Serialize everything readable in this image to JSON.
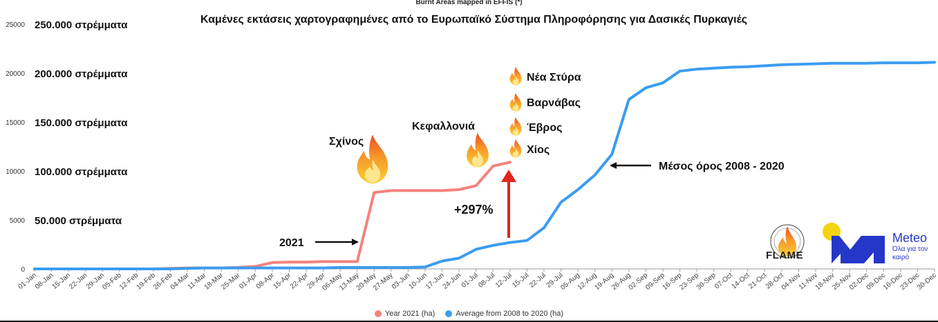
{
  "header": {
    "source_title": "Burnt Areas mapped in EFFIS (*)",
    "main_title": "Καμένες εκτάσεις χαρτογραφημένες από το Ευρωπαϊκό Σύστημα Πληροφόρησης για Δασικές Πυρκαγιές"
  },
  "colors": {
    "series_2021": "#f4827c",
    "series_avg": "#3b9cf0",
    "arrow_red": "#e0251b",
    "axis": "#9a9a9a",
    "meteo_blue": "#2437c9",
    "meteo_yellow": "#f5d40f"
  },
  "strema_labels": [
    {
      "value": 20000,
      "text": "50.000 στρέμματα"
    },
    {
      "value": 0,
      "text": ""
    },
    {
      "value": 40000,
      "text": "100.000 στρέμματα"
    },
    {
      "value": 60000,
      "text": "150.000 στρέμματα"
    },
    {
      "value": 80000,
      "text": "200.000 στρέμματα"
    },
    {
      "value": 100000,
      "text": "250.000 στρέμματα"
    }
  ],
  "annotations": {
    "schinos": "Σχίνος",
    "kefallonia": "Κεφαλλονιά",
    "nea_styra": "Νέα Στύρα",
    "varnavas": "Βαρνάβας",
    "evros": "Έβρος",
    "chios": "Χίος",
    "year_2021": "2021",
    "average_label": "Μέσος όρος 2008 - 2020",
    "increase": "+297%"
  },
  "logos": {
    "flame_text": "FLAME",
    "flame_ring_text": "EXPERTS ON FIRE WEATHER & FIRE BEHAVIOUR",
    "meteo_name": "Meteo",
    "meteo_slogan": "Όλα για τον καιρό"
  },
  "chart_data": {
    "type": "line",
    "title": "Burnt Areas mapped in EFFIS (*)",
    "xlabel": "",
    "ylabel": "",
    "ylim": [
      0,
      25000
    ],
    "yticks": [
      0,
      5000,
      10000,
      15000,
      20000,
      25000
    ],
    "grid": false,
    "legend_position": "bottom",
    "categories": [
      "01-Jan",
      "08-Jan",
      "15-Jan",
      "22-Jan",
      "29-Jan",
      "05-Feb",
      "12-Feb",
      "19-Feb",
      "26-Feb",
      "04-Mar",
      "11-Mar",
      "18-Mar",
      "25-Mar",
      "01-Apr",
      "08-Apr",
      "15-Apr",
      "22-Apr",
      "29-Apr",
      "06-May",
      "13-May",
      "20-May",
      "27-May",
      "03-Jun",
      "10-Jun",
      "17-Jun",
      "24-Jun",
      "01-Jul",
      "08-Jul",
      "12-Jul",
      "15-Jul",
      "22-Jul",
      "29-Jul",
      "05-Aug",
      "12-Aug",
      "19-Aug",
      "26-Aug",
      "02-Sep",
      "09-Sep",
      "16-Sep",
      "23-Sep",
      "30-Sep",
      "07-Oct",
      "14-Oct",
      "21-Oct",
      "28-Oct",
      "04-Nov",
      "11-Nov",
      "18-Nov",
      "25-Nov",
      "02-Dec",
      "09-Dec",
      "16-Dec",
      "23-Dec",
      "30-Dec"
    ],
    "series": [
      {
        "name": "Year 2021 (ha)",
        "values": [
          0,
          0,
          0,
          0,
          0,
          0,
          0,
          0,
          50,
          100,
          100,
          100,
          150,
          250,
          650,
          700,
          700,
          750,
          750,
          750,
          7800,
          8000,
          8000,
          8000,
          8000,
          8100,
          8500,
          10500,
          10900,
          null,
          null,
          null,
          null,
          null,
          null,
          null,
          null,
          null,
          null,
          null,
          null,
          null,
          null,
          null,
          null,
          null,
          null,
          null,
          null,
          null,
          null,
          null,
          null,
          null
        ]
      },
      {
        "name": "Average from 2008 to 2020 (ha)",
        "values": [
          0,
          0,
          0,
          0,
          0,
          0,
          0,
          0,
          0,
          50,
          100,
          100,
          100,
          100,
          100,
          100,
          100,
          100,
          150,
          150,
          150,
          150,
          150,
          200,
          800,
          1100,
          2000,
          2400,
          2700,
          2900,
          4200,
          6800,
          8100,
          9600,
          11700,
          17300,
          18500,
          19000,
          20200,
          20400,
          20500,
          20600,
          20650,
          20750,
          20850,
          20900,
          20950,
          21000,
          21000,
          21000,
          21050,
          21050,
          21050,
          21100
        ]
      }
    ]
  }
}
